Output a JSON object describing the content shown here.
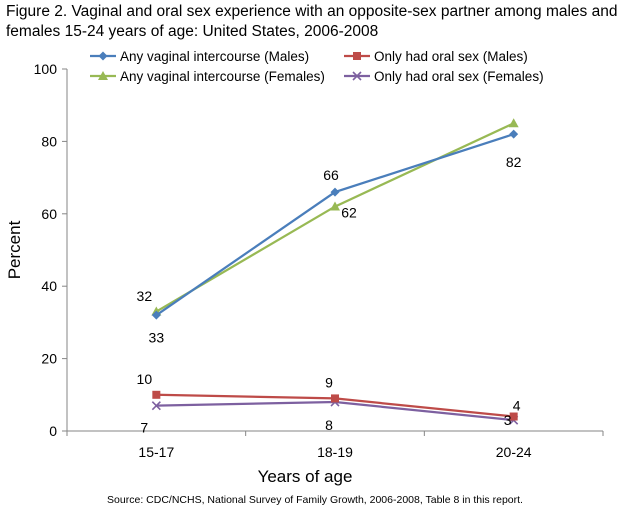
{
  "title": "Figure 2. Vaginal and oral sex experience with an opposite-sex partner among males and females 15-24 years of age: United States, 2006-2008",
  "source": "Source:  CDC/NCHS, National Survey of Family Growth, 2006-2008, Table 8 in this report.",
  "chart_data": {
    "type": "line",
    "title": "Figure 2. Vaginal and oral sex experience with an opposite-sex partner among males and females 15-24 years of age: United States, 2006-2008",
    "xlabel": "Years of age",
    "ylabel": "Percent",
    "categories": [
      "15-17",
      "18-19",
      "20-24"
    ],
    "ylim": [
      0,
      100
    ],
    "yticks": [
      0,
      20,
      40,
      60,
      80,
      100
    ],
    "grid": false,
    "legend_position": "top",
    "series": [
      {
        "name": "Any vaginal intercourse (Males)",
        "values": [
          32,
          66,
          82
        ],
        "color": "#4a7ebb",
        "marker": "diamond",
        "labels": [
          "32",
          "66",
          "82"
        ]
      },
      {
        "name": "Only had oral sex (Males)",
        "values": [
          10,
          9,
          4
        ],
        "color": "#be4b48",
        "marker": "square",
        "labels": [
          "10",
          "9",
          "4"
        ]
      },
      {
        "name": "Any vaginal intercourse (Females)",
        "values": [
          33,
          62,
          85
        ],
        "color": "#98b954",
        "marker": "triangle",
        "labels": [
          "33",
          "62",
          ""
        ]
      },
      {
        "name": "Only had oral sex (Females)",
        "values": [
          7,
          8,
          3
        ],
        "color": "#7d60a0",
        "marker": "x",
        "labels": [
          "7",
          "8",
          "3"
        ]
      }
    ]
  }
}
